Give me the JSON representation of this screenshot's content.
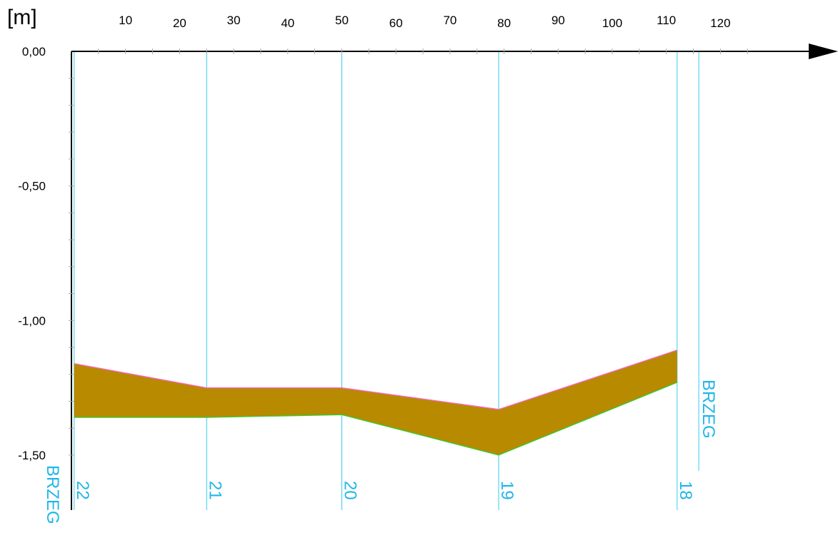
{
  "chart_data": {
    "type": "area",
    "y_unit_label": "[m]",
    "x_ticks": [
      10,
      20,
      30,
      40,
      50,
      60,
      70,
      80,
      90,
      100,
      110,
      120
    ],
    "y_ticks": [
      "0,00",
      "-0,50",
      "-1,00",
      "-1,50"
    ],
    "y_tick_values": [
      0.0,
      -0.5,
      -1.0,
      -1.5
    ],
    "xlim": [
      0,
      125
    ],
    "ylim": [
      -1.5,
      0.0
    ],
    "layer": {
      "fill_color": "#b88a00",
      "top_color": "#ff66cc",
      "bottom_color": "#33cc33",
      "top": [
        {
          "x": 0.5,
          "y": -1.16
        },
        {
          "x": 25,
          "y": -1.25
        },
        {
          "x": 50,
          "y": -1.25
        },
        {
          "x": 79,
          "y": -1.33
        },
        {
          "x": 112,
          "y": -1.11
        }
      ],
      "bottom": [
        {
          "x": 0.5,
          "y": -1.36
        },
        {
          "x": 25,
          "y": -1.36
        },
        {
          "x": 50,
          "y": -1.35
        },
        {
          "x": 79,
          "y": -1.5
        },
        {
          "x": 112,
          "y": -1.23
        }
      ]
    },
    "stations": [
      {
        "label": "22",
        "x": 0.5
      },
      {
        "label": "21",
        "x": 25
      },
      {
        "label": "20",
        "x": 50
      },
      {
        "label": "19",
        "x": 79
      },
      {
        "label": "18",
        "x": 112
      }
    ],
    "banks": [
      {
        "label": "BRZEG",
        "x": 0
      },
      {
        "label": "BRZEG",
        "x": 116
      }
    ],
    "colors": {
      "axis": "#000000",
      "station_line": "#33ccee",
      "station_text": "#1fb6e8"
    }
  }
}
